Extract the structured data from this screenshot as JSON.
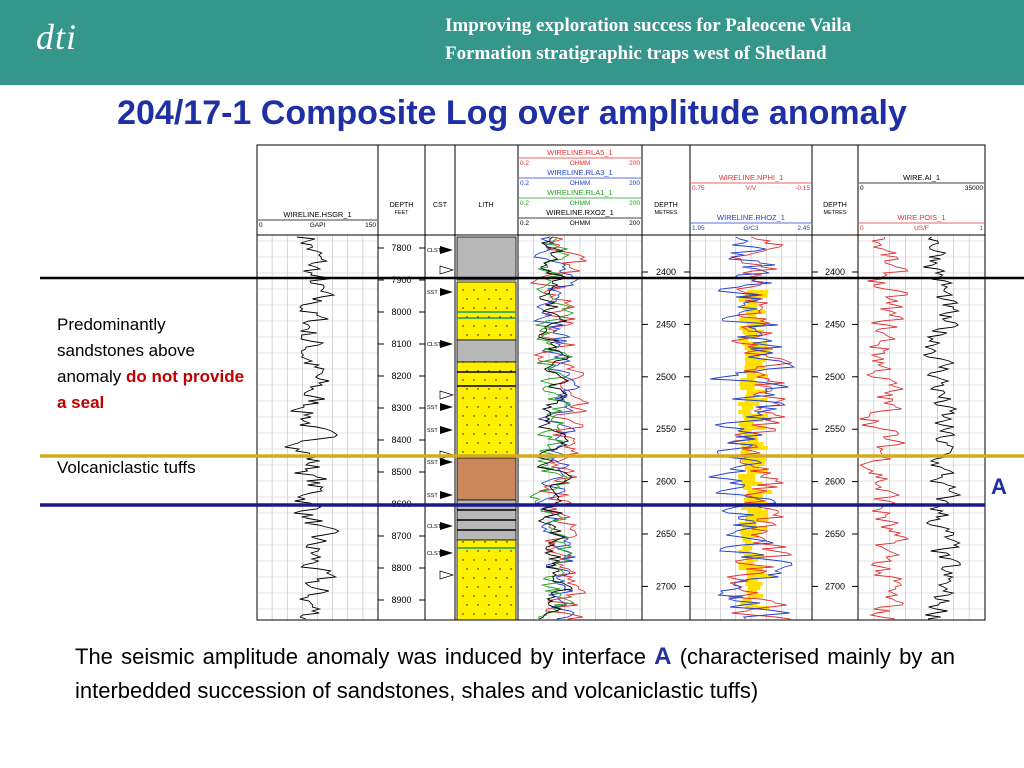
{
  "header": {
    "logo": "dti",
    "title_lines": [
      "Improving exploration success for Paleocene Vaila",
      "Formation stratigraphic traps west of Shetland"
    ]
  },
  "title": "204/17-1 Composite Log over amplitude anomaly",
  "log": {
    "gr": {
      "curves": [
        {
          "name": "WIRELINE.HSGR_1",
          "color": "#000000",
          "min": "0",
          "unit": "GAPI",
          "max": "150"
        }
      ]
    },
    "depth_feet": {
      "label": "DEPTH",
      "unit": "FEET",
      "ticks": [
        "7800",
        "7900",
        "8000",
        "8100",
        "8200",
        "8300",
        "8400",
        "8500",
        "8600",
        "8700",
        "8800",
        "8900"
      ]
    },
    "cst": {
      "label": "CST",
      "samples": [
        "CLST",
        "SST",
        "CLST",
        "SST",
        "SST",
        "SST",
        "SST",
        "CLST",
        "CLST"
      ]
    },
    "lith": {
      "label": "LITH"
    },
    "resistivity": {
      "curves": [
        {
          "name": "WIRELINE.RLA5_1",
          "color": "#e03030",
          "min": "0.2",
          "unit": "OHMM",
          "max": "200"
        },
        {
          "name": "WIRELINE.RLA3_1",
          "color": "#2040d0",
          "min": "0.2",
          "unit": "OHMM",
          "max": "200"
        },
        {
          "name": "WIRELINE.RLA1_1",
          "color": "#20a020",
          "min": "0.2",
          "unit": "OHMM",
          "max": "200"
        },
        {
          "name": "WIRELINE.RXOZ_1",
          "color": "#000000",
          "min": "0.2",
          "unit": "OHMM",
          "max": "200"
        }
      ]
    },
    "depth_metres_1": {
      "label": "DEPTH",
      "unit": "METRES",
      "ticks": [
        "2400",
        "2450",
        "2500",
        "2550",
        "2600",
        "2650",
        "2700"
      ]
    },
    "porosity": {
      "curves": [
        {
          "name": "WIRELINE.NPHI_1",
          "color": "#e03030",
          "min": "0.75",
          "unit": "V/V",
          "max": "-0.15"
        },
        {
          "name": "WIRELINE.RHOZ_1",
          "color": "#2040d0",
          "min": "1.95",
          "unit": "G/C3",
          "max": "2.45"
        }
      ]
    },
    "depth_metres_2": {
      "label": "DEPTH",
      "unit": "METRES",
      "ticks": [
        "2400",
        "2450",
        "2500",
        "2550",
        "2600",
        "2650",
        "2700"
      ]
    },
    "impedance": {
      "curves": [
        {
          "name": "WIRE.AI_1",
          "color": "#000000",
          "min": "0",
          "max": "35000"
        },
        {
          "name": "WIRE.POIS_1",
          "color": "#e03030",
          "min": "0",
          "unit": "US/F",
          "max": "1"
        }
      ]
    }
  },
  "seal_note": {
    "text": "Predominantly sandstones above anomaly",
    "emphasis": "do not provide a seal"
  },
  "tuff_note": "Volcaniclastic tuffs",
  "interface_label": "A",
  "caption": {
    "before": "The seismic amplitude anomaly was induced by interface",
    "interface": "A",
    "after": "(characterised mainly by an interbedded succession of sandstones, shales and volcaniclastic tuffs)"
  }
}
